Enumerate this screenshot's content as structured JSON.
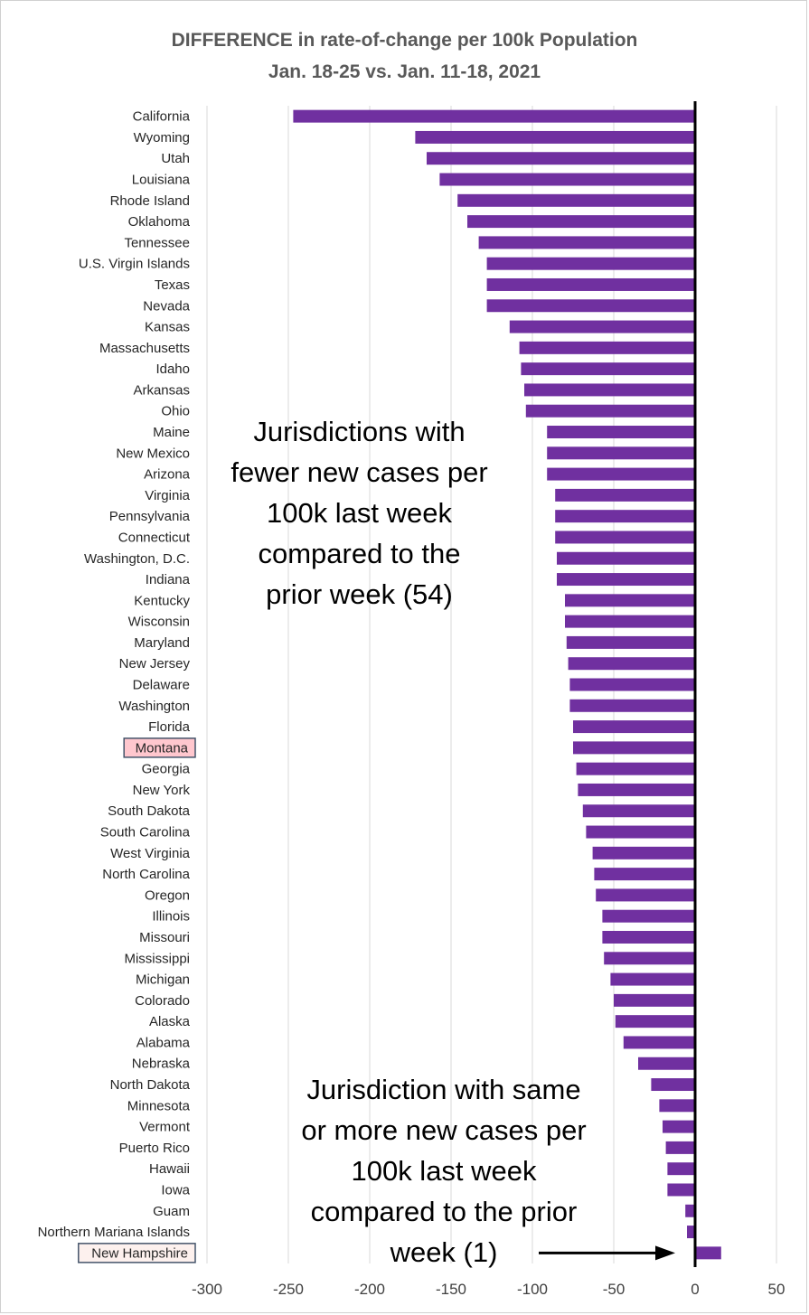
{
  "chart_data": {
    "type": "bar",
    "orientation": "horizontal",
    "title": "DIFFERENCE in rate-of-change per 100k Population",
    "subtitle": "Jan. 18-25 vs. Jan. 11-18, 2021",
    "xlim": [
      -300,
      50
    ],
    "xticks": [
      -300,
      -250,
      -200,
      -150,
      -100,
      -50,
      0,
      50
    ],
    "grid": "vertical",
    "bar_color": "#7030a0",
    "categories": [
      "California",
      "Wyoming",
      "Utah",
      "Louisiana",
      "Rhode Island",
      "Oklahoma",
      "Tennessee",
      "U.S. Virgin Islands",
      "Texas",
      "Nevada",
      "Kansas",
      "Massachusetts",
      "Idaho",
      "Arkansas",
      "Ohio",
      "Maine",
      "New Mexico",
      "Arizona",
      "Virginia",
      "Pennsylvania",
      "Connecticut",
      "Washington, D.C.",
      "Indiana",
      "Kentucky",
      "Wisconsin",
      "Maryland",
      "New Jersey",
      "Delaware",
      "Washington",
      "Florida",
      "Montana",
      "Georgia",
      "New York",
      "South Dakota",
      "South Carolina",
      "West Virginia",
      "North Carolina",
      "Oregon",
      "Illinois",
      "Missouri",
      "Mississippi",
      "Michigan",
      "Colorado",
      "Alaska",
      "Alabama",
      "Nebraska",
      "North Dakota",
      "Minnesota",
      "Vermont",
      "Puerto Rico",
      "Hawaii",
      "Iowa",
      "Guam",
      "Northern Mariana Islands",
      "New Hampshire"
    ],
    "values": [
      -247,
      -172,
      -165,
      -157,
      -146,
      -140,
      -133,
      -128,
      -128,
      -128,
      -114,
      -108,
      -107,
      -105,
      -104,
      -91,
      -91,
      -91,
      -86,
      -86,
      -86,
      -85,
      -85,
      -80,
      -80,
      -79,
      -78,
      -77,
      -77,
      -75,
      -75,
      -73,
      -72,
      -69,
      -67,
      -63,
      -62,
      -61,
      -57,
      -57,
      -56,
      -52,
      -50,
      -49,
      -44,
      -35,
      -27,
      -22,
      -20,
      -18,
      -17,
      -17,
      -6,
      -5,
      16
    ],
    "highlighted": {
      "Montana": "#ffc7ce",
      "New Hampshire": "#fdf1ee"
    },
    "annotations": [
      {
        "name": "fewer-cases",
        "lines": [
          "Jurisdictions with",
          "fewer new cases per",
          "100k last week",
          "compared to the",
          "prior week (54)"
        ]
      },
      {
        "name": "same-or-more-cases",
        "lines": [
          "Jurisdiction with same",
          "or more new cases per",
          "100k last week",
          "compared to the prior",
          "week (1)"
        ]
      }
    ]
  }
}
